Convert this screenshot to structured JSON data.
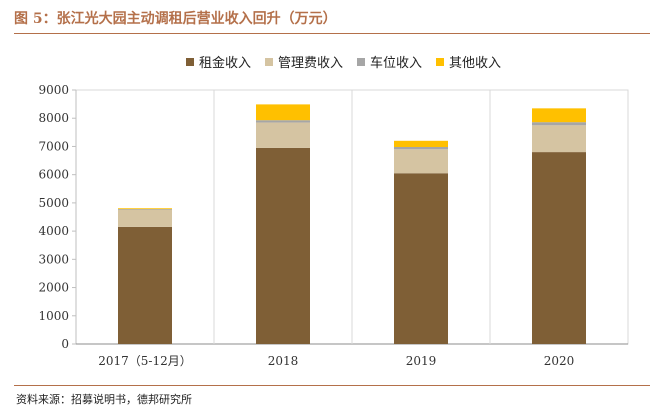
{
  "figure": {
    "title": "图 5：张江光大园主动调租后营业收入回升（万元）",
    "source": "资料来源：招募说明书，德邦研究所"
  },
  "colors": {
    "rent": "#7f5f36",
    "management": "#d5c4a2",
    "parking": "#a6a6a6",
    "other": "#ffc000",
    "accent": "#b4704a"
  },
  "chart_data": {
    "type": "bar",
    "stacked": true,
    "categories": [
      "2017（5-12月）",
      "2018",
      "2019",
      "2020"
    ],
    "series": [
      {
        "name": "租金收入",
        "values": [
          4150,
          6950,
          6050,
          6800
        ]
      },
      {
        "name": "管理费收入",
        "values": [
          600,
          900,
          850,
          950
        ]
      },
      {
        "name": "车位收入",
        "values": [
          30,
          80,
          80,
          110
        ]
      },
      {
        "name": "其他收入",
        "values": [
          30,
          560,
          220,
          490
        ]
      }
    ],
    "y_ticks": [
      "0",
      "1000",
      "2000",
      "3000",
      "4000",
      "5000",
      "6000",
      "7000",
      "8000",
      "9000"
    ],
    "ylim": [
      0,
      9000
    ],
    "legend_position": "top",
    "grid": false
  }
}
